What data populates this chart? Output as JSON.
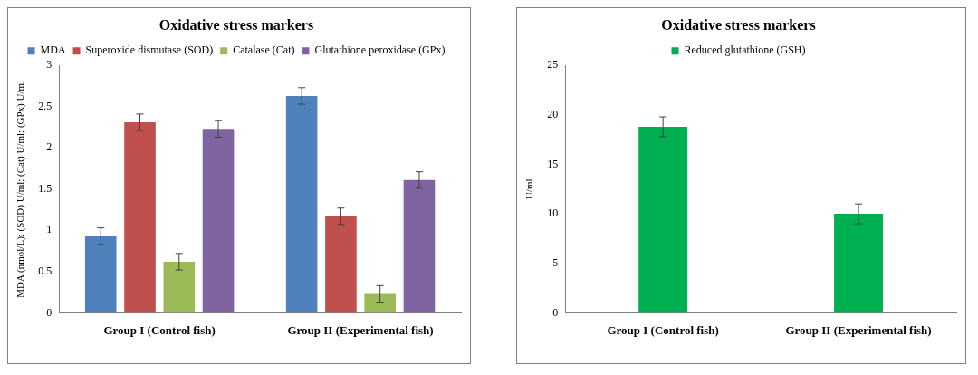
{
  "chart_data": [
    {
      "type": "bar",
      "title": "Oxidative stress markers",
      "ylabel": "MDA (nmol/L); (SOD) U/ml; (Cat) U/ml; (GPx) U/ml",
      "categories": [
        "Group I (Control fish)",
        "Group II (Experimental fish)"
      ],
      "series": [
        {
          "name": "MDA",
          "color": "#4f81bd",
          "values": [
            0.93,
            2.63
          ],
          "errors": [
            0.1,
            0.1
          ]
        },
        {
          "name": "Superoxide dismutase (SOD)",
          "color": "#c0504d",
          "values": [
            2.31,
            1.17
          ],
          "errors": [
            0.1,
            0.1
          ]
        },
        {
          "name": "Catalase (Cat)",
          "color": "#9bbb59",
          "values": [
            0.62,
            0.23
          ],
          "errors": [
            0.1,
            0.1
          ]
        },
        {
          "name": "Glutathione peroxidase (GPx)",
          "color": "#8064a2",
          "values": [
            2.23,
            1.61
          ],
          "errors": [
            0.1,
            0.1
          ]
        }
      ],
      "ylim": [
        0,
        3
      ],
      "yticks": [
        0,
        0.5,
        1,
        1.5,
        2,
        2.5,
        3
      ],
      "grid": false,
      "legend": "top"
    },
    {
      "type": "bar",
      "title": "Oxidative stress markers",
      "ylabel": "U/ml",
      "categories": [
        "Group I (Control fish)",
        "Group II (Experimental fish)"
      ],
      "series": [
        {
          "name": "Reduced glutathione (GSH)",
          "color": "#00b050",
          "values": [
            18.8,
            10.0
          ],
          "errors": [
            1.0,
            1.0
          ]
        }
      ],
      "ylim": [
        0,
        25
      ],
      "yticks": [
        0,
        5,
        10,
        15,
        20,
        25
      ],
      "grid": false,
      "legend": "top"
    }
  ]
}
